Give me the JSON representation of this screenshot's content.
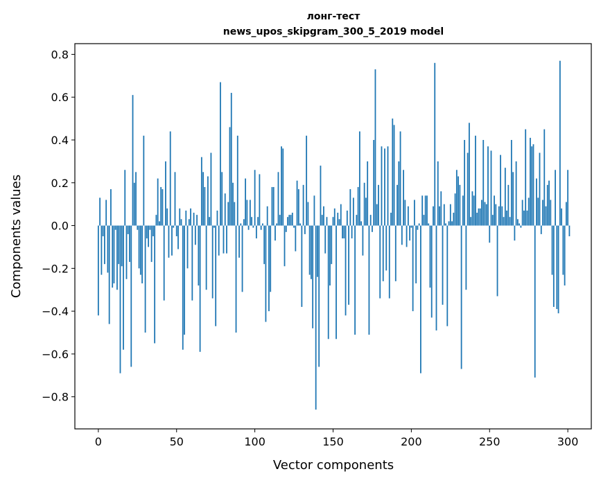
{
  "chart_data": {
    "type": "bar",
    "title_line1": "лонг-тест",
    "title_line2": "news_upos_skipgram_300_5_2019 model",
    "xlabel": "Vector components",
    "ylabel": "Components values",
    "xlim": [
      -15,
      315
    ],
    "ylim": [
      -0.95,
      0.85
    ],
    "xticks": [
      0,
      50,
      100,
      150,
      200,
      250,
      300
    ],
    "xtick_labels": [
      "0",
      "50",
      "100",
      "150",
      "200",
      "250",
      "300"
    ],
    "yticks": [
      -0.8,
      -0.6,
      -0.4,
      -0.2,
      0.0,
      0.2,
      0.4,
      0.6,
      0.8
    ],
    "ytick_labels": [
      "−0.8",
      "−0.6",
      "−0.4",
      "−0.2",
      "0.0",
      "0.2",
      "0.4",
      "0.6",
      "0.8"
    ],
    "bar_color": "#1f77b4",
    "grid": false,
    "legend": "none",
    "values": [
      -0.42,
      0.13,
      -0.23,
      -0.05,
      -0.18,
      0.12,
      -0.22,
      -0.46,
      0.17,
      -0.29,
      -0.27,
      -0.02,
      -0.3,
      -0.18,
      -0.69,
      -0.19,
      -0.58,
      0.26,
      -0.25,
      -0.04,
      -0.17,
      -0.66,
      0.61,
      0.2,
      0.25,
      -0.02,
      -0.2,
      -0.23,
      -0.27,
      0.42,
      -0.5,
      -0.06,
      -0.1,
      -0.02,
      -0.17,
      -0.05,
      -0.55,
      0.05,
      0.22,
      0.02,
      0.18,
      0.17,
      -0.35,
      0.3,
      0.08,
      -0.15,
      0.44,
      -0.14,
      -0.01,
      0.25,
      -0.05,
      -0.11,
      0.08,
      0.03,
      -0.58,
      -0.51,
      0.07,
      -0.2,
      0.03,
      0.08,
      -0.35,
      0.06,
      -0.09,
      0.05,
      -0.28,
      -0.59,
      0.32,
      0.25,
      0.18,
      -0.3,
      0.23,
      0.04,
      0.34,
      -0.34,
      -0.01,
      -0.47,
      0.07,
      -0.14,
      0.67,
      0.25,
      -0.13,
      0.15,
      -0.13,
      0.11,
      0.46,
      0.62,
      0.2,
      0.11,
      -0.5,
      0.42,
      -0.15,
      0.01,
      -0.31,
      0.03,
      0.22,
      0.12,
      -0.02,
      0.12,
      0.04,
      -0.01,
      0.26,
      -0.06,
      0.04,
      0.24,
      -0.02,
      0.01,
      -0.18,
      -0.45,
      0.09,
      -0.4,
      -0.31,
      0.18,
      0.18,
      -0.07,
      0.01,
      0.25,
      0.05,
      0.37,
      0.36,
      -0.19,
      -0.03,
      0.04,
      0.05,
      0.05,
      0.06,
      -0.01,
      -0.12,
      0.21,
      0.17,
      0.01,
      -0.38,
      0.19,
      -0.04,
      0.42,
      0.11,
      -0.23,
      -0.25,
      -0.48,
      0.14,
      -0.86,
      -0.24,
      -0.66,
      0.28,
      0.05,
      0.09,
      -0.13,
      0.04,
      -0.53,
      -0.28,
      -0.18,
      0.04,
      0.08,
      -0.53,
      0.06,
      0.03,
      0.1,
      -0.06,
      -0.06,
      -0.42,
      0.07,
      -0.37,
      0.17,
      -0.06,
      0.13,
      -0.51,
      0.05,
      0.18,
      0.44,
      0.02,
      -0.14,
      0.2,
      0.13,
      0.3,
      -0.51,
      0.05,
      -0.03,
      0.4,
      0.73,
      0.1,
      0.19,
      -0.34,
      0.37,
      -0.26,
      0.36,
      -0.21,
      0.37,
      -0.34,
      0.06,
      0.5,
      0.47,
      -0.26,
      0.19,
      0.3,
      0.44,
      -0.09,
      0.26,
      0.12,
      -0.1,
      0.09,
      -0.07,
      -0.01,
      -0.4,
      0.12,
      -0.27,
      -0.02,
      0.01,
      -0.69,
      0.14,
      0.05,
      0.14,
      0.14,
      0.01,
      -0.29,
      -0.43,
      0.09,
      0.76,
      -0.49,
      0.3,
      0.09,
      0.16,
      -0.37,
      0.1,
      0.01,
      -0.47,
      0.02,
      0.1,
      0.02,
      0.06,
      0.15,
      0.26,
      0.23,
      0.19,
      -0.67,
      0.14,
      0.4,
      -0.3,
      0.34,
      0.48,
      0.04,
      0.16,
      0.14,
      0.42,
      0.06,
      0.08,
      0.08,
      0.12,
      0.4,
      0.11,
      0.1,
      0.37,
      -0.08,
      0.35,
      0.05,
      0.14,
      0.1,
      -0.33,
      0.09,
      0.33,
      0.09,
      0.04,
      0.27,
      0.07,
      0.19,
      0.04,
      0.4,
      0.25,
      -0.07,
      0.3,
      0.03,
      0.01,
      -0.01,
      0.12,
      0.07,
      0.45,
      0.07,
      0.13,
      0.41,
      0.37,
      0.38,
      -0.71,
      0.22,
      0.13,
      0.34,
      -0.04,
      0.12,
      0.45,
      0.09,
      0.19,
      0.21,
      0.12,
      -0.23,
      -0.38,
      0.26,
      -0.39,
      -0.41,
      0.77,
      0.08,
      -0.23,
      -0.28,
      0.11,
      0.26,
      -0.05
    ]
  }
}
